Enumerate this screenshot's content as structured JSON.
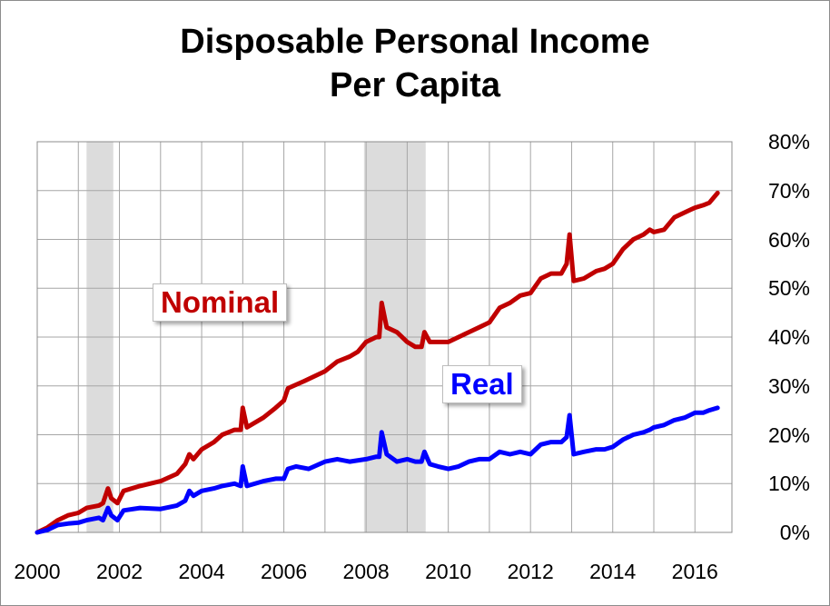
{
  "chart_data": {
    "type": "line",
    "title_line1": "Disposable Personal Income",
    "title_line2": "Per Capita",
    "xlabel": "",
    "ylabel": "",
    "xlim": [
      2000,
      2016.9
    ],
    "ylim": [
      0,
      80
    ],
    "y_axis_side": "right",
    "y_ticks": [
      "0%",
      "10%",
      "20%",
      "30%",
      "40%",
      "50%",
      "60%",
      "70%",
      "80%"
    ],
    "x_ticks": [
      "2000",
      "2002",
      "2004",
      "2006",
      "2008",
      "2010",
      "2012",
      "2014",
      "2016"
    ],
    "grid": true,
    "recessions": [
      [
        2001.2,
        2001.85
      ],
      [
        2007.95,
        2009.45
      ]
    ],
    "series": [
      {
        "name": "Nominal",
        "color": "#c00000",
        "points": [
          [
            2000.0,
            0
          ],
          [
            2000.25,
            1
          ],
          [
            2000.5,
            2.5
          ],
          [
            2000.75,
            3.5
          ],
          [
            2001.0,
            4
          ],
          [
            2001.2,
            5
          ],
          [
            2001.5,
            5.5
          ],
          [
            2001.6,
            6
          ],
          [
            2001.72,
            9
          ],
          [
            2001.8,
            7
          ],
          [
            2001.95,
            6
          ],
          [
            2002.1,
            8.5
          ],
          [
            2002.5,
            9.5
          ],
          [
            2003.0,
            10.5
          ],
          [
            2003.4,
            12
          ],
          [
            2003.6,
            14
          ],
          [
            2003.7,
            16
          ],
          [
            2003.8,
            15
          ],
          [
            2004.0,
            17
          ],
          [
            2004.3,
            18.5
          ],
          [
            2004.5,
            20
          ],
          [
            2004.8,
            21
          ],
          [
            2004.95,
            21
          ],
          [
            2005.0,
            25.5
          ],
          [
            2005.1,
            21.5
          ],
          [
            2005.5,
            23.5
          ],
          [
            2005.8,
            25.5
          ],
          [
            2006.0,
            27
          ],
          [
            2006.1,
            29.5
          ],
          [
            2006.5,
            31
          ],
          [
            2007.0,
            33
          ],
          [
            2007.3,
            35
          ],
          [
            2007.6,
            36
          ],
          [
            2007.8,
            37
          ],
          [
            2008.0,
            39
          ],
          [
            2008.25,
            40
          ],
          [
            2008.32,
            40
          ],
          [
            2008.38,
            47
          ],
          [
            2008.5,
            42
          ],
          [
            2008.75,
            41
          ],
          [
            2009.0,
            39
          ],
          [
            2009.2,
            38
          ],
          [
            2009.35,
            38
          ],
          [
            2009.42,
            41
          ],
          [
            2009.55,
            39
          ],
          [
            2009.75,
            39
          ],
          [
            2010.0,
            39
          ],
          [
            2010.25,
            40
          ],
          [
            2010.5,
            41
          ],
          [
            2010.75,
            42
          ],
          [
            2011.0,
            43
          ],
          [
            2011.25,
            46
          ],
          [
            2011.5,
            47
          ],
          [
            2011.75,
            48.5
          ],
          [
            2012.0,
            49
          ],
          [
            2012.25,
            52
          ],
          [
            2012.5,
            53
          ],
          [
            2012.75,
            53
          ],
          [
            2012.88,
            55
          ],
          [
            2012.95,
            61
          ],
          [
            2013.05,
            51.5
          ],
          [
            2013.3,
            52
          ],
          [
            2013.6,
            53.5
          ],
          [
            2013.8,
            54
          ],
          [
            2014.0,
            55
          ],
          [
            2014.25,
            58
          ],
          [
            2014.5,
            60
          ],
          [
            2014.75,
            61
          ],
          [
            2014.9,
            62
          ],
          [
            2015.0,
            61.5
          ],
          [
            2015.25,
            62
          ],
          [
            2015.5,
            64.5
          ],
          [
            2015.75,
            65.5
          ],
          [
            2016.0,
            66.5
          ],
          [
            2016.2,
            67
          ],
          [
            2016.35,
            67.5
          ],
          [
            2016.55,
            69.5
          ]
        ]
      },
      {
        "name": "Real",
        "color": "#0000ff",
        "points": [
          [
            2000.0,
            0
          ],
          [
            2000.25,
            0.5
          ],
          [
            2000.5,
            1.5
          ],
          [
            2000.75,
            1.8
          ],
          [
            2001.0,
            2
          ],
          [
            2001.2,
            2.5
          ],
          [
            2001.5,
            3
          ],
          [
            2001.6,
            2.5
          ],
          [
            2001.72,
            5
          ],
          [
            2001.8,
            3.5
          ],
          [
            2001.95,
            2.5
          ],
          [
            2002.1,
            4.5
          ],
          [
            2002.5,
            5
          ],
          [
            2003.0,
            4.8
          ],
          [
            2003.4,
            5.5
          ],
          [
            2003.6,
            6.5
          ],
          [
            2003.7,
            8.5
          ],
          [
            2003.8,
            7.5
          ],
          [
            2004.0,
            8.5
          ],
          [
            2004.3,
            9
          ],
          [
            2004.5,
            9.5
          ],
          [
            2004.8,
            10
          ],
          [
            2004.95,
            9.5
          ],
          [
            2005.0,
            13.5
          ],
          [
            2005.1,
            9.5
          ],
          [
            2005.5,
            10.5
          ],
          [
            2005.8,
            11
          ],
          [
            2006.0,
            11
          ],
          [
            2006.1,
            13
          ],
          [
            2006.3,
            13.5
          ],
          [
            2006.6,
            13
          ],
          [
            2007.0,
            14.5
          ],
          [
            2007.3,
            15
          ],
          [
            2007.6,
            14.5
          ],
          [
            2008.0,
            15
          ],
          [
            2008.25,
            15.5
          ],
          [
            2008.32,
            15.5
          ],
          [
            2008.38,
            20.5
          ],
          [
            2008.5,
            16
          ],
          [
            2008.75,
            14.5
          ],
          [
            2009.0,
            15
          ],
          [
            2009.2,
            14.5
          ],
          [
            2009.35,
            14.5
          ],
          [
            2009.42,
            16.5
          ],
          [
            2009.55,
            14
          ],
          [
            2009.75,
            13.5
          ],
          [
            2010.0,
            13
          ],
          [
            2010.25,
            13.5
          ],
          [
            2010.5,
            14.5
          ],
          [
            2010.75,
            15
          ],
          [
            2011.0,
            15
          ],
          [
            2011.25,
            16.5
          ],
          [
            2011.5,
            16
          ],
          [
            2011.75,
            16.5
          ],
          [
            2012.0,
            16
          ],
          [
            2012.25,
            18
          ],
          [
            2012.5,
            18.5
          ],
          [
            2012.75,
            18.5
          ],
          [
            2012.88,
            19.5
          ],
          [
            2012.95,
            24
          ],
          [
            2013.05,
            16
          ],
          [
            2013.3,
            16.5
          ],
          [
            2013.6,
            17
          ],
          [
            2013.8,
            17
          ],
          [
            2014.0,
            17.5
          ],
          [
            2014.25,
            19
          ],
          [
            2014.5,
            20
          ],
          [
            2014.75,
            20.5
          ],
          [
            2014.9,
            21
          ],
          [
            2015.0,
            21.5
          ],
          [
            2015.25,
            22
          ],
          [
            2015.5,
            23
          ],
          [
            2015.75,
            23.5
          ],
          [
            2016.0,
            24.5
          ],
          [
            2016.2,
            24.5
          ],
          [
            2016.35,
            25
          ],
          [
            2016.55,
            25.5
          ]
        ]
      }
    ],
    "annotations": [
      {
        "text": "Nominal",
        "color": "#c00000"
      },
      {
        "text": "Real",
        "color": "#0000ff"
      }
    ]
  }
}
